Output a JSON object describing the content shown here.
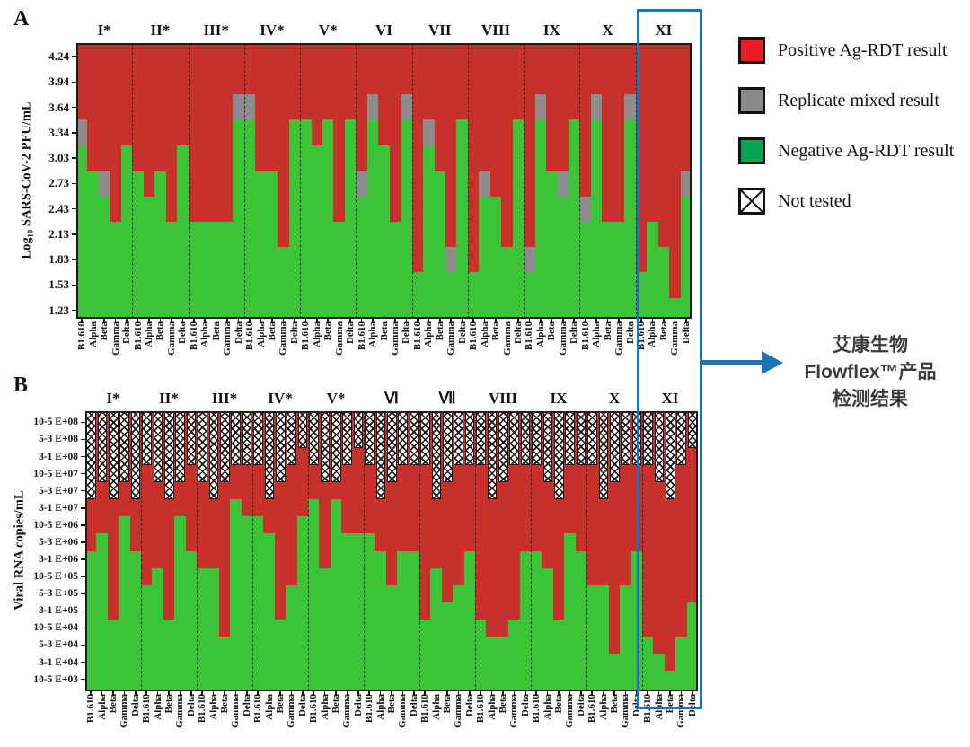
{
  "chart_data": [
    {
      "id": "panel-A",
      "panel_letter": "A",
      "type": "bar",
      "stacked": true,
      "ylabel": "Log₁₀ SARS-CoV-2 PFU/mL",
      "y_tick_labels": [
        "4.24",
        "3.94",
        "3.64",
        "3.34",
        "3.03",
        "2.73",
        "2.43",
        "2.13",
        "1.83",
        "1.53",
        "1.23"
      ],
      "ylim": [
        1.13,
        4.4
      ],
      "grid": false,
      "x_labels": [
        "B1.610",
        "Alpha",
        "Beta",
        "Gamma",
        "Delta"
      ],
      "segment_meaning": "green = Negative Ag-RDT up to negative_to; gray = Replicate mixed up to mixed_to; red = Positive Ag-RDT above, to top of axis",
      "groups": [
        {
          "label": "I*",
          "bars": [
            {
              "variant": "B1.610",
              "negative_to": 3.19,
              "mixed_to": 3.49
            },
            {
              "variant": "Alpha",
              "negative_to": 2.88,
              "mixed_to": null
            },
            {
              "variant": "Beta",
              "negative_to": 2.58,
              "mixed_to": 2.88
            },
            {
              "variant": "Gamma",
              "negative_to": 2.28,
              "mixed_to": null
            },
            {
              "variant": "Delta",
              "negative_to": 3.19,
              "mixed_to": null
            }
          ]
        },
        {
          "label": "II*",
          "bars": [
            {
              "variant": "B1.610",
              "negative_to": 2.88,
              "mixed_to": null
            },
            {
              "variant": "Alpha",
              "negative_to": 2.58,
              "mixed_to": null
            },
            {
              "variant": "Beta",
              "negative_to": 2.88,
              "mixed_to": null
            },
            {
              "variant": "Gamma",
              "negative_to": 2.28,
              "mixed_to": null
            },
            {
              "variant": "Delta",
              "negative_to": 3.19,
              "mixed_to": null
            }
          ]
        },
        {
          "label": "III*",
          "bars": [
            {
              "variant": "B1.610",
              "negative_to": 2.28,
              "mixed_to": null
            },
            {
              "variant": "Alpha",
              "negative_to": 2.28,
              "mixed_to": null
            },
            {
              "variant": "Beta",
              "negative_to": 2.28,
              "mixed_to": null
            },
            {
              "variant": "Gamma",
              "negative_to": 2.28,
              "mixed_to": null
            },
            {
              "variant": "Delta",
              "negative_to": 3.49,
              "mixed_to": 3.79
            }
          ]
        },
        {
          "label": "IV*",
          "bars": [
            {
              "variant": "B1.610",
              "negative_to": 3.49,
              "mixed_to": 3.79
            },
            {
              "variant": "Alpha",
              "negative_to": 2.88,
              "mixed_to": null
            },
            {
              "variant": "Beta",
              "negative_to": 2.88,
              "mixed_to": null
            },
            {
              "variant": "Gamma",
              "negative_to": 1.98,
              "mixed_to": null
            },
            {
              "variant": "Delta",
              "negative_to": 3.49,
              "mixed_to": null
            }
          ]
        },
        {
          "label": "V*",
          "bars": [
            {
              "variant": "B1.610",
              "negative_to": 3.49,
              "mixed_to": null
            },
            {
              "variant": "Alpha",
              "negative_to": 3.19,
              "mixed_to": null
            },
            {
              "variant": "Beta",
              "negative_to": 3.49,
              "mixed_to": null
            },
            {
              "variant": "Gamma",
              "negative_to": 2.28,
              "mixed_to": null
            },
            {
              "variant": "Delta",
              "negative_to": 3.49,
              "mixed_to": null
            }
          ]
        },
        {
          "label": "VI",
          "bars": [
            {
              "variant": "B1.610",
              "negative_to": 2.58,
              "mixed_to": 2.88
            },
            {
              "variant": "Alpha",
              "negative_to": 3.49,
              "mixed_to": 3.79
            },
            {
              "variant": "Beta",
              "negative_to": 3.19,
              "mixed_to": null
            },
            {
              "variant": "Gamma",
              "negative_to": 2.28,
              "mixed_to": null
            },
            {
              "variant": "Delta",
              "negative_to": 3.49,
              "mixed_to": 3.79
            }
          ]
        },
        {
          "label": "VII",
          "bars": [
            {
              "variant": "B1.610",
              "negative_to": 1.68,
              "mixed_to": null
            },
            {
              "variant": "Alpha",
              "negative_to": 3.19,
              "mixed_to": 3.49
            },
            {
              "variant": "Beta",
              "negative_to": 2.88,
              "mixed_to": null
            },
            {
              "variant": "Gamma",
              "negative_to": 1.68,
              "mixed_to": 1.98
            },
            {
              "variant": "Delta",
              "negative_to": 3.49,
              "mixed_to": null
            }
          ]
        },
        {
          "label": "VIII",
          "bars": [
            {
              "variant": "B1.610",
              "negative_to": 1.68,
              "mixed_to": null
            },
            {
              "variant": "Alpha",
              "negative_to": 2.58,
              "mixed_to": 2.88
            },
            {
              "variant": "Beta",
              "negative_to": 2.58,
              "mixed_to": null
            },
            {
              "variant": "Gamma",
              "negative_to": 1.98,
              "mixed_to": null
            },
            {
              "variant": "Delta",
              "negative_to": 3.49,
              "mixed_to": null
            }
          ]
        },
        {
          "label": "IX",
          "bars": [
            {
              "variant": "B1.610",
              "negative_to": 1.68,
              "mixed_to": 1.98
            },
            {
              "variant": "Alpha",
              "negative_to": 3.49,
              "mixed_to": 3.79
            },
            {
              "variant": "Beta",
              "negative_to": 2.88,
              "mixed_to": null
            },
            {
              "variant": "Gamma",
              "negative_to": 2.58,
              "mixed_to": 2.88
            },
            {
              "variant": "Delta",
              "negative_to": 3.49,
              "mixed_to": null
            }
          ]
        },
        {
          "label": "X",
          "bars": [
            {
              "variant": "B1.610",
              "negative_to": 2.28,
              "mixed_to": 2.58
            },
            {
              "variant": "Alpha",
              "negative_to": 3.49,
              "mixed_to": 3.79
            },
            {
              "variant": "Beta",
              "negative_to": 2.28,
              "mixed_to": null
            },
            {
              "variant": "Gamma",
              "negative_to": 2.28,
              "mixed_to": null
            },
            {
              "variant": "Delta",
              "negative_to": 3.49,
              "mixed_to": 3.79
            }
          ]
        },
        {
          "label": "XI",
          "bars": [
            {
              "variant": "B1.610",
              "negative_to": 1.68,
              "mixed_to": null
            },
            {
              "variant": "Alpha",
              "negative_to": 2.28,
              "mixed_to": null
            },
            {
              "variant": "Beta",
              "negative_to": 1.98,
              "mixed_to": null
            },
            {
              "variant": "Gamma",
              "negative_to": 1.38,
              "mixed_to": null
            },
            {
              "variant": "Delta",
              "negative_to": 2.58,
              "mixed_to": 2.88
            }
          ]
        }
      ],
      "colors": {
        "positive": "#c8302b",
        "mixed": "#8d8d8d",
        "negative": "#3cc437"
      }
    },
    {
      "id": "panel-B",
      "panel_letter": "B",
      "type": "bar",
      "stacked": true,
      "ylabel": "Viral RNA copies/mL",
      "y_tick_labels": [
        "10-5 E+08",
        "5-3 E+08",
        "3-1 E+08",
        "10-5 E+07",
        "5-3 E+07",
        "3-1 E+07",
        "10-5 E+06",
        "5-3 E+06",
        "3-1 E+06",
        "10-5 E+05",
        "5-3 E+05",
        "3-1 E+05",
        "10-5 E+04",
        "5-3 E+04",
        "3-1 E+04",
        "10-5 E+03"
      ],
      "y_scale_note": "bar values are in y-tick index units: 0 = 10-5 E+03 (bottom) … 15 = 10-5 E+08 (top)",
      "ylim": [
        -0.7,
        15.65
      ],
      "grid": false,
      "x_labels": [
        "B1.610",
        "Alpha",
        "Beta",
        "Gamma",
        "Delta"
      ],
      "segment_meaning": "crosshatch = Not tested from axis top down to not_tested_down_to; red = Positive Ag-RDT; green = Negative Ag-RDT from bottom up to negative_to",
      "groups": [
        {
          "label": "I*",
          "bars": [
            {
              "variant": "B1.610",
              "not_tested_down_to": 10.5,
              "negative_to": 7.5
            },
            {
              "variant": "Alpha",
              "not_tested_down_to": 11.5,
              "negative_to": 8.5
            },
            {
              "variant": "Beta",
              "not_tested_down_to": 10.5,
              "negative_to": 3.5
            },
            {
              "variant": "Gamma",
              "not_tested_down_to": 11.5,
              "negative_to": 9.5
            },
            {
              "variant": "Delta",
              "not_tested_down_to": 10.5,
              "negative_to": 7.5
            }
          ]
        },
        {
          "label": "II*",
          "bars": [
            {
              "variant": "B1.610",
              "not_tested_down_to": 12.5,
              "negative_to": 5.5
            },
            {
              "variant": "Alpha",
              "not_tested_down_to": 11.5,
              "negative_to": 6.5
            },
            {
              "variant": "Beta",
              "not_tested_down_to": 10.5,
              "negative_to": 3.5
            },
            {
              "variant": "Gamma",
              "not_tested_down_to": 11.5,
              "negative_to": 9.5
            },
            {
              "variant": "Delta",
              "not_tested_down_to": 12.5,
              "negative_to": 7.5
            }
          ]
        },
        {
          "label": "III*",
          "bars": [
            {
              "variant": "B1.610",
              "not_tested_down_to": 11.5,
              "negative_to": 6.5
            },
            {
              "variant": "Alpha",
              "not_tested_down_to": 10.5,
              "negative_to": 6.5
            },
            {
              "variant": "Beta",
              "not_tested_down_to": 11.5,
              "negative_to": 2.5
            },
            {
              "variant": "Gamma",
              "not_tested_down_to": 12.5,
              "negative_to": 10.5
            },
            {
              "variant": "Delta",
              "not_tested_down_to": 12.5,
              "negative_to": 9.5
            }
          ]
        },
        {
          "label": "IV*",
          "bars": [
            {
              "variant": "B1.610",
              "not_tested_down_to": 12.5,
              "negative_to": 9.5
            },
            {
              "variant": "Alpha",
              "not_tested_down_to": 10.5,
              "negative_to": 8.5
            },
            {
              "variant": "Beta",
              "not_tested_down_to": 11.5,
              "negative_to": 3.5
            },
            {
              "variant": "Gamma",
              "not_tested_down_to": 12.5,
              "negative_to": 5.5
            },
            {
              "variant": "Delta",
              "not_tested_down_to": 13.5,
              "negative_to": 9.5
            }
          ]
        },
        {
          "label": "V*",
          "bars": [
            {
              "variant": "B1.610",
              "not_tested_down_to": 12.5,
              "negative_to": 10.5
            },
            {
              "variant": "Alpha",
              "not_tested_down_to": 11.5,
              "negative_to": 6.5
            },
            {
              "variant": "Beta",
              "not_tested_down_to": 11.5,
              "negative_to": 10.5
            },
            {
              "variant": "Gamma",
              "not_tested_down_to": 12.5,
              "negative_to": 8.5
            },
            {
              "variant": "Delta",
              "not_tested_down_to": 13.5,
              "negative_to": 8.5
            }
          ]
        },
        {
          "label": "Ⅵ",
          "bars": [
            {
              "variant": "B1.610",
              "not_tested_down_to": 12.5,
              "negative_to": 8.5
            },
            {
              "variant": "Alpha",
              "not_tested_down_to": 10.5,
              "negative_to": 7.5
            },
            {
              "variant": "Beta",
              "not_tested_down_to": 11.5,
              "negative_to": 5.5
            },
            {
              "variant": "Gamma",
              "not_tested_down_to": 12.5,
              "negative_to": 7.5
            },
            {
              "variant": "Delta",
              "not_tested_down_to": 12.5,
              "negative_to": 7.5
            }
          ]
        },
        {
          "label": "Ⅶ",
          "bars": [
            {
              "variant": "B1.610",
              "not_tested_down_to": 12.5,
              "negative_to": 3.5
            },
            {
              "variant": "Alpha",
              "not_tested_down_to": 10.5,
              "negative_to": 6.5
            },
            {
              "variant": "Beta",
              "not_tested_down_to": 11.5,
              "negative_to": 4.5
            },
            {
              "variant": "Gamma",
              "not_tested_down_to": 12.5,
              "negative_to": 5.5
            },
            {
              "variant": "Delta",
              "not_tested_down_to": 12.5,
              "negative_to": 7.5
            }
          ]
        },
        {
          "label": "VIII",
          "bars": [
            {
              "variant": "B1.610",
              "not_tested_down_to": 12.5,
              "negative_to": 3.5
            },
            {
              "variant": "Alpha",
              "not_tested_down_to": 10.5,
              "negative_to": 2.5
            },
            {
              "variant": "Beta",
              "not_tested_down_to": 11.5,
              "negative_to": 2.5
            },
            {
              "variant": "Gamma",
              "not_tested_down_to": 12.5,
              "negative_to": 3.5
            },
            {
              "variant": "Delta",
              "not_tested_down_to": 12.5,
              "negative_to": 7.5
            }
          ]
        },
        {
          "label": "IX",
          "bars": [
            {
              "variant": "B1.610",
              "not_tested_down_to": 12.5,
              "negative_to": 7.5
            },
            {
              "variant": "Alpha",
              "not_tested_down_to": 11.5,
              "negative_to": 6.5
            },
            {
              "variant": "Beta",
              "not_tested_down_to": 10.5,
              "negative_to": 3.5
            },
            {
              "variant": "Gamma",
              "not_tested_down_to": 12.5,
              "negative_to": 8.5
            },
            {
              "variant": "Delta",
              "not_tested_down_to": 12.5,
              "negative_to": 7.5
            }
          ]
        },
        {
          "label": "X",
          "bars": [
            {
              "variant": "B1.610",
              "not_tested_down_to": 12.5,
              "negative_to": 5.5
            },
            {
              "variant": "Alpha",
              "not_tested_down_to": 10.5,
              "negative_to": 5.5
            },
            {
              "variant": "Beta",
              "not_tested_down_to": 11.5,
              "negative_to": 1.5
            },
            {
              "variant": "Gamma",
              "not_tested_down_to": 12.5,
              "negative_to": 5.5
            },
            {
              "variant": "Delta",
              "not_tested_down_to": 12.5,
              "negative_to": 7.5
            }
          ]
        },
        {
          "label": "XI",
          "bars": [
            {
              "variant": "B1.610",
              "not_tested_down_to": 12.5,
              "negative_to": 2.5
            },
            {
              "variant": "Alpha",
              "not_tested_down_to": 11.5,
              "negative_to": 1.5
            },
            {
              "variant": "Beta",
              "not_tested_down_to": 10.5,
              "negative_to": 0.5
            },
            {
              "variant": "Gamma",
              "not_tested_down_to": 12.5,
              "negative_to": 2.5
            },
            {
              "variant": "Delta",
              "not_tested_down_to": 13.5,
              "negative_to": 4.5
            }
          ]
        }
      ],
      "colors": {
        "positive": "#c8302b",
        "negative": "#3cc437",
        "not_tested_bg": "#ffffff"
      }
    }
  ],
  "legend": {
    "items": [
      {
        "key": "positive",
        "label": "Positive Ag-RDT result",
        "color": "#ec1c24",
        "pattern": "solid"
      },
      {
        "key": "mixed",
        "label": "Replicate mixed result",
        "color": "#8a8a8a",
        "pattern": "solid"
      },
      {
        "key": "negative",
        "label": "Negative Ag-RDT result",
        "color": "#00a651",
        "pattern": "solid"
      },
      {
        "key": "not_tested",
        "label": "Not tested",
        "color": "#ffffff",
        "pattern": "diagonal-cross"
      }
    ]
  },
  "annotation": {
    "lines": [
      "艾康生物",
      "Flowflex™产品",
      "检测结果"
    ],
    "highlighted_group": "XI",
    "box_color": "#1e73b5",
    "arrow_color": "#1e73b5"
  }
}
